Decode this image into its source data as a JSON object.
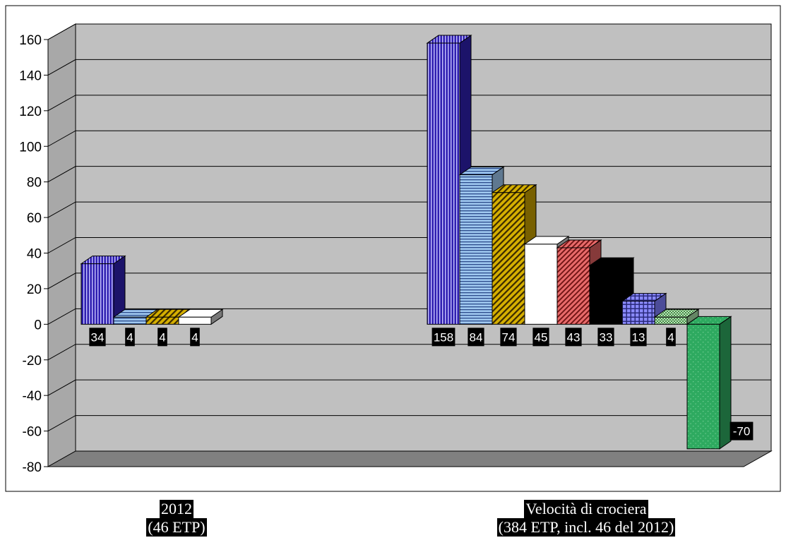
{
  "chart_data": {
    "type": "bar",
    "categories": [
      {
        "line1": "2012",
        "line2": "(46 ETP)"
      },
      {
        "line1": "Velocità di crociera",
        "line2": "(384 ETP, incl. 46 del 2012)"
      }
    ],
    "groups": [
      {
        "values": [
          34,
          4,
          4,
          4
        ]
      },
      {
        "values": [
          158,
          84,
          74,
          45,
          43,
          33,
          13,
          4,
          -70
        ]
      }
    ],
    "value_labels": [
      [
        "34",
        "4",
        "4",
        "4"
      ],
      [
        "158",
        "84",
        "74",
        "45",
        "43",
        "33",
        "13",
        "4",
        "-70"
      ]
    ],
    "ylim": [
      -80,
      160
    ],
    "yticks": [
      -80,
      -60,
      -40,
      -20,
      0,
      20,
      40,
      60,
      80,
      100,
      120,
      140,
      160
    ],
    "grid": true,
    "style_3d": true,
    "series_colors": [
      "#2f1fb0",
      "#9fc8f0",
      "#c8a000",
      "#ffffff",
      "#e06060",
      "#000000",
      "#7f7fff",
      "#a8e0a8",
      "#2eaa60"
    ],
    "colors": {
      "wall": "#c0c0c0",
      "floor": "#808080",
      "grid": "#000000"
    }
  }
}
